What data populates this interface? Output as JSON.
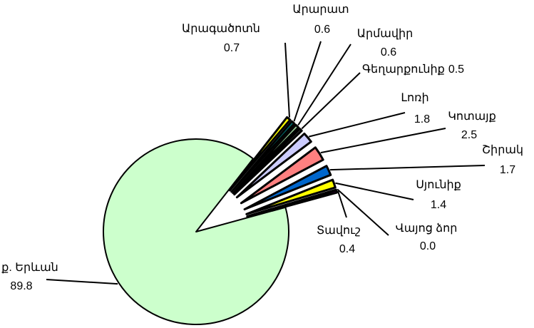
{
  "chart_data": {
    "type": "pie",
    "categories": [
      "Արագածոտն",
      "Արարատ",
      "Արմավիր",
      "Գեղարքունիք",
      "Լոռի",
      "Կոտայք",
      "Շիրակ",
      "Սյունիք",
      "Վայոց ձոր",
      "Տավուշ",
      "ք. Երևան"
    ],
    "values": [
      0.7,
      0.6,
      0.6,
      0.5,
      1.8,
      2.5,
      1.7,
      1.4,
      0.0,
      0.4,
      89.8
    ],
    "value_labels": [
      "0.7",
      "0.6",
      "0.6",
      "0.5",
      "1.8",
      "2.5",
      "1.7",
      "1.4",
      "0.0",
      "0.4",
      "89.8"
    ],
    "colors": [
      "#ffff00",
      "#006666",
      "#99cc99",
      "#333333",
      "#ccccff",
      "#ff8080",
      "#0066cc",
      "#ffff00",
      "#9999ff",
      "#cc00cc",
      "#ccffcc"
    ]
  }
}
